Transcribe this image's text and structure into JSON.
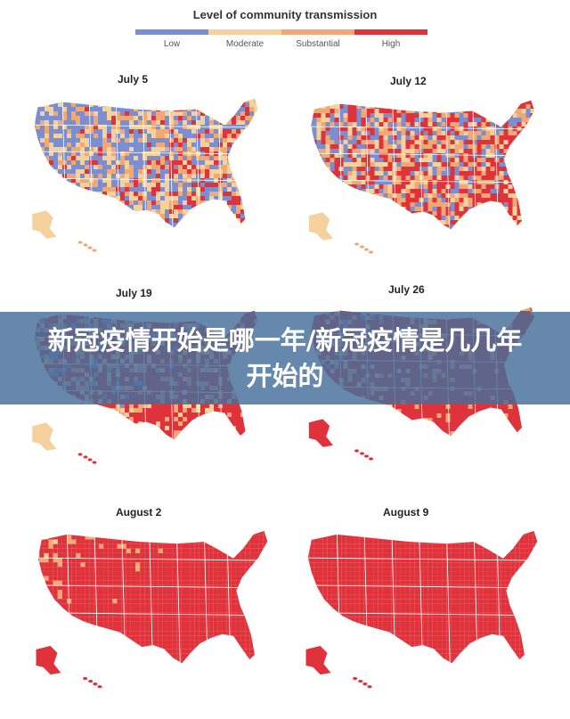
{
  "legend": {
    "title": "Level of community transmission",
    "items": [
      {
        "label": "Low",
        "color": "#7b8fd0"
      },
      {
        "label": "Moderate",
        "color": "#f5d19e"
      },
      {
        "label": "Substantial",
        "color": "#f0a875"
      },
      {
        "label": "High",
        "color": "#e0323a"
      }
    ]
  },
  "panels": [
    {
      "date": "July 5",
      "high": 0.3,
      "substantial": 0.22,
      "moderate": 0.25,
      "low": 0.23
    },
    {
      "date": "July 12",
      "high": 0.42,
      "substantial": 0.22,
      "moderate": 0.18,
      "low": 0.18
    },
    {
      "date": "July 19",
      "high": 0.55,
      "substantial": 0.2,
      "moderate": 0.12,
      "low": 0.13
    },
    {
      "date": "July 26",
      "high": 0.65,
      "substantial": 0.17,
      "moderate": 0.09,
      "low": 0.09
    },
    {
      "date": "August 2",
      "high": 0.76,
      "substantial": 0.12,
      "moderate": 0.06,
      "low": 0.06
    },
    {
      "date": "August 9",
      "high": 0.84,
      "substantial": 0.09,
      "moderate": 0.03,
      "low": 0.04
    }
  ],
  "banner": {
    "text": "新冠疫情开始是哪一年/新冠疫情是几几年开始的"
  }
}
